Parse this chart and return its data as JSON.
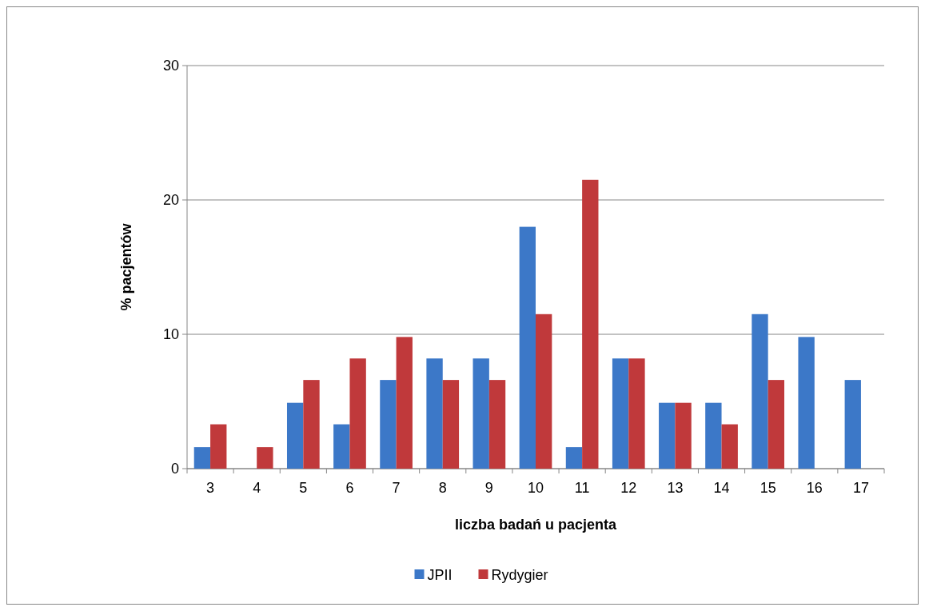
{
  "chart_data": {
    "type": "bar",
    "xlabel": "liczba badań u pacjenta",
    "ylabel": "% pacjentów",
    "categories": [
      "3",
      "4",
      "5",
      "6",
      "7",
      "8",
      "9",
      "10",
      "11",
      "12",
      "13",
      "14",
      "15",
      "16",
      "17"
    ],
    "series": [
      {
        "name": "JPII",
        "color": "#3c78c8",
        "values": [
          1.6,
          0,
          4.9,
          3.3,
          6.6,
          8.2,
          8.2,
          18,
          1.6,
          8.2,
          4.9,
          4.9,
          11.5,
          9.8,
          6.6
        ]
      },
      {
        "name": "Rydygier",
        "color": "#c0393b",
        "values": [
          3.3,
          1.6,
          6.6,
          8.2,
          9.8,
          6.6,
          6.6,
          11.5,
          21.5,
          8.2,
          4.9,
          3.3,
          6.6,
          0,
          0
        ]
      }
    ],
    "ylim": [
      0,
      30
    ],
    "yticks": [
      0,
      10,
      20,
      30
    ],
    "grid": "y",
    "legend": "bottom"
  }
}
